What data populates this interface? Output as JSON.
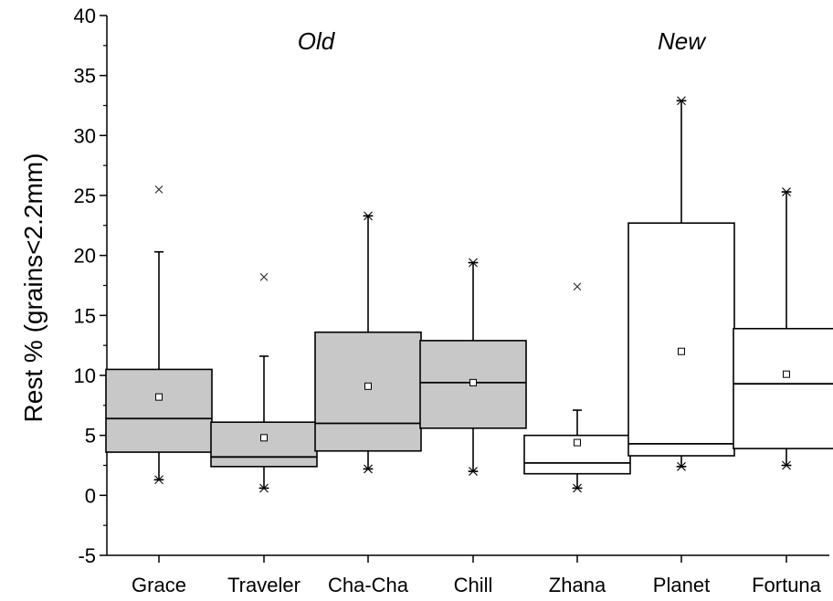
{
  "chart_data": {
    "type": "box",
    "ylabel": "Rest % (grains<2.2mm)",
    "xlabel": "",
    "ylim": [
      -5,
      40
    ],
    "yticks": [
      -5,
      0,
      5,
      10,
      15,
      20,
      25,
      30,
      35,
      40
    ],
    "groups": [
      {
        "label": "Old",
        "categories": [
          "Grace",
          "Traveler",
          "Cha-Cha",
          "Chill"
        ]
      },
      {
        "label": "New",
        "categories": [
          "Zhana",
          "Planet",
          "Fortuna"
        ]
      }
    ],
    "colors": {
      "old_fill": "#c8c8c8",
      "new_fill": "#ffffff",
      "stroke": "#000000"
    },
    "boxes": [
      {
        "category": "Grace",
        "group": "Old",
        "whisker_low": 1.3,
        "q1": 3.6,
        "median": 6.4,
        "q3": 10.5,
        "whisker_high": 20.3,
        "mean": 8.2,
        "min": 1.3,
        "max": 25.5
      },
      {
        "category": "Traveler",
        "group": "Old",
        "whisker_low": 0.6,
        "q1": 2.4,
        "median": 3.2,
        "q3": 6.1,
        "whisker_high": 11.6,
        "mean": 4.8,
        "min": 0.6,
        "max": 18.2
      },
      {
        "category": "Cha-Cha",
        "group": "Old",
        "whisker_low": 2.2,
        "q1": 3.7,
        "median": 6.0,
        "q3": 13.6,
        "whisker_high": 23.3,
        "mean": 9.1,
        "min": 2.2,
        "max": 23.3
      },
      {
        "category": "Chill",
        "group": "Old",
        "whisker_low": 2.0,
        "q1": 5.6,
        "median": 9.4,
        "q3": 12.9,
        "whisker_high": 19.4,
        "mean": 9.4,
        "min": 2.0,
        "max": 19.4
      },
      {
        "category": "Zhana",
        "group": "New",
        "whisker_low": 0.6,
        "q1": 1.8,
        "median": 2.7,
        "q3": 5.0,
        "whisker_high": 7.1,
        "mean": 4.4,
        "min": 0.6,
        "max": 17.4
      },
      {
        "category": "Planet",
        "group": "New",
        "whisker_low": 2.4,
        "q1": 3.3,
        "median": 4.3,
        "q3": 22.7,
        "whisker_high": 32.9,
        "mean": 12.0,
        "min": 2.4,
        "max": 32.9
      },
      {
        "category": "Fortuna",
        "group": "New",
        "whisker_low": 2.5,
        "q1": 3.9,
        "median": 9.3,
        "q3": 13.9,
        "whisker_high": 25.3,
        "mean": 10.1,
        "min": 2.5,
        "max": 25.3
      }
    ]
  }
}
